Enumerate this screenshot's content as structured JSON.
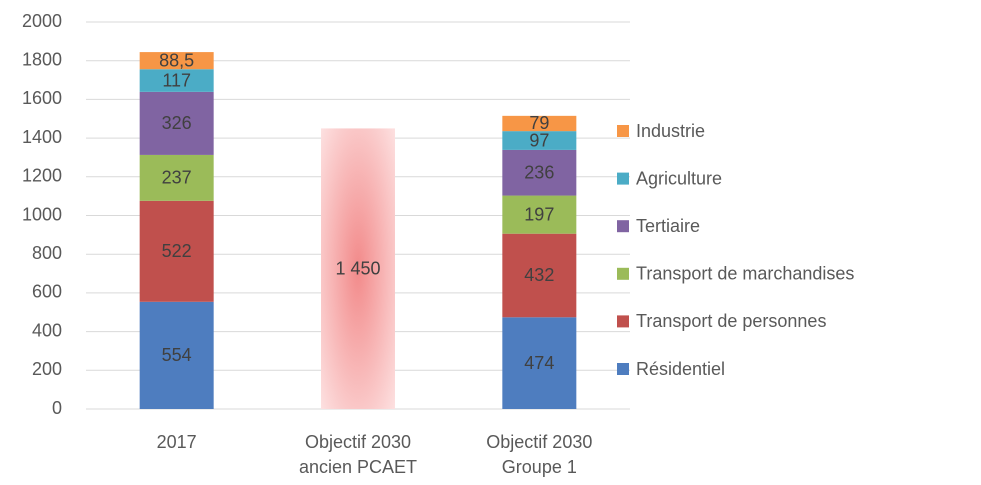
{
  "chart_data": {
    "type": "stacked_bar",
    "categories": [
      "2017",
      "Objectif 2030 ancien PCAET",
      "Objectif 2030 Groupe 1"
    ],
    "series": [
      {
        "name": "Résidentiel",
        "color": "#4e7dbf",
        "values": [
          554,
          null,
          474
        ]
      },
      {
        "name": "Transport de personnes",
        "color": "#c0504d",
        "values": [
          522,
          null,
          432
        ]
      },
      {
        "name": "Transport de marchandises",
        "color": "#9bbb59",
        "values": [
          237,
          null,
          197
        ]
      },
      {
        "name": "Tertiaire",
        "color": "#8064a2",
        "values": [
          326,
          null,
          236
        ]
      },
      {
        "name": "Agriculture",
        "color": "#4bacc6",
        "values": [
          117,
          null,
          97
        ]
      },
      {
        "name": "Industrie",
        "color": "#f79646",
        "values": [
          88.5,
          null,
          79
        ],
        "value_labels": [
          "88,5",
          null,
          "79"
        ]
      }
    ],
    "target": {
      "color": "#f28a8a",
      "values": [
        null,
        1450,
        null
      ],
      "value_labels": [
        null,
        "1 450",
        null
      ]
    },
    "ylim": [
      0,
      2000
    ],
    "yticks": [
      0,
      200,
      400,
      600,
      800,
      1000,
      1200,
      1400,
      1600,
      1800,
      2000
    ],
    "grid": true,
    "legend": "right"
  }
}
